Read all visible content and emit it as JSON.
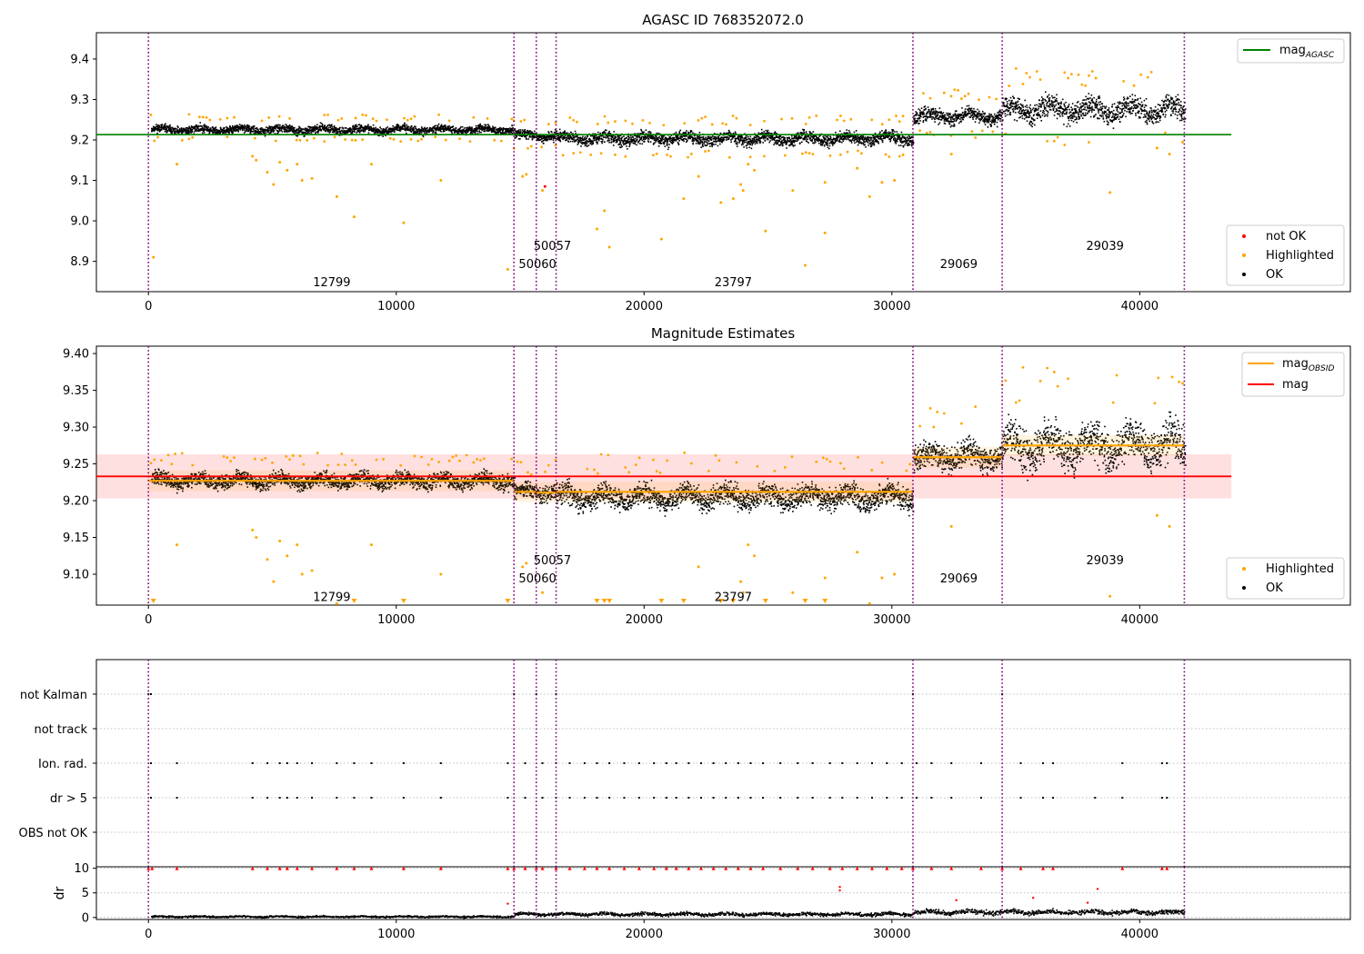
{
  "chart_data": [
    {
      "type": "scatter",
      "title": "AGASC ID 768352072.0",
      "xlabel": "",
      "ylabel": "",
      "xlim": [
        -2100,
        48500
      ],
      "ylim": [
        8.825,
        9.465
      ],
      "x_ticks": [
        0,
        10000,
        20000,
        30000,
        40000
      ],
      "y_ticks": [
        8.9,
        9.0,
        9.1,
        9.2,
        9.3,
        9.4
      ],
      "y_tick_labels": [
        "8.9",
        "9.0",
        "9.1",
        "9.2",
        "9.3",
        "9.4"
      ],
      "lines": [
        {
          "name": "mag_AGASC",
          "label": "mag",
          "subscript": "AGASC",
          "color": "#008000",
          "y": 9.213,
          "x_range": [
            -2100,
            43700
          ]
        }
      ],
      "vertical_lines": [
        0,
        14750,
        15650,
        16450,
        30850,
        34450,
        41800
      ],
      "obsid_labels": [
        {
          "text": "12799",
          "x": 7400,
          "y": 8.85
        },
        {
          "text": "50060",
          "x": 15700,
          "y": 8.895
        },
        {
          "text": "50057",
          "x": 16300,
          "y": 8.94
        },
        {
          "text": "23797",
          "x": 23600,
          "y": 8.85
        },
        {
          "text": "29069",
          "x": 32700,
          "y": 8.895
        },
        {
          "text": "29039",
          "x": 38600,
          "y": 8.94
        }
      ],
      "series": [
        {
          "name": "not OK",
          "color": "#ff0000"
        },
        {
          "name": "Highlighted",
          "color": "#ffa500"
        },
        {
          "name": "OK",
          "color": "#000000"
        }
      ],
      "segments": [
        {
          "x": [
            100,
            14750
          ],
          "center": 9.227,
          "spread": 0.014
        },
        {
          "x": [
            14750,
            16450
          ],
          "center": 9.212,
          "spread": 0.016
        },
        {
          "x": [
            16450,
            30850
          ],
          "center": 9.205,
          "spread": 0.022
        },
        {
          "x": [
            30850,
            34450
          ],
          "center": 9.26,
          "spread": 0.025
        },
        {
          "x": [
            34450,
            41800
          ],
          "center": 9.275,
          "spread": 0.04
        }
      ],
      "outliers": [
        {
          "x": 200,
          "y": 8.91
        },
        {
          "x": 1150,
          "y": 9.14
        },
        {
          "x": 4200,
          "y": 9.16
        },
        {
          "x": 4350,
          "y": 9.15
        },
        {
          "x": 4800,
          "y": 9.12
        },
        {
          "x": 5050,
          "y": 9.09
        },
        {
          "x": 5300,
          "y": 9.145
        },
        {
          "x": 5600,
          "y": 9.125
        },
        {
          "x": 6000,
          "y": 9.14
        },
        {
          "x": 6200,
          "y": 9.1
        },
        {
          "x": 6600,
          "y": 9.105
        },
        {
          "x": 7600,
          "y": 9.06
        },
        {
          "x": 8300,
          "y": 9.01
        },
        {
          "x": 9000,
          "y": 9.14
        },
        {
          "x": 10300,
          "y": 8.995
        },
        {
          "x": 11800,
          "y": 9.1
        },
        {
          "x": 14500,
          "y": 8.88
        },
        {
          "x": 15100,
          "y": 9.11
        },
        {
          "x": 15250,
          "y": 9.115
        },
        {
          "x": 15900,
          "y": 9.075
        },
        {
          "x": 18100,
          "y": 8.98
        },
        {
          "x": 18400,
          "y": 9.025
        },
        {
          "x": 18600,
          "y": 8.935
        },
        {
          "x": 20700,
          "y": 8.955
        },
        {
          "x": 21600,
          "y": 9.055
        },
        {
          "x": 22200,
          "y": 9.11
        },
        {
          "x": 23100,
          "y": 9.045
        },
        {
          "x": 23600,
          "y": 9.055
        },
        {
          "x": 23900,
          "y": 9.09
        },
        {
          "x": 24000,
          "y": 9.075
        },
        {
          "x": 24200,
          "y": 9.14
        },
        {
          "x": 24450,
          "y": 9.125
        },
        {
          "x": 24900,
          "y": 8.975
        },
        {
          "x": 26000,
          "y": 9.075
        },
        {
          "x": 26500,
          "y": 8.89
        },
        {
          "x": 27300,
          "y": 9.095
        },
        {
          "x": 27300,
          "y": 8.97
        },
        {
          "x": 28600,
          "y": 9.13
        },
        {
          "x": 29100,
          "y": 9.06
        },
        {
          "x": 29600,
          "y": 9.095
        },
        {
          "x": 30100,
          "y": 9.1
        },
        {
          "x": 32400,
          "y": 9.165
        },
        {
          "x": 38800,
          "y": 9.07
        },
        {
          "x": 40700,
          "y": 9.18
        },
        {
          "x": 41200,
          "y": 9.165
        }
      ],
      "not_ok_points": [
        {
          "x": 16000,
          "y": 9.085
        }
      ],
      "legend_top": "upper right",
      "legend_bottom": "lower right"
    },
    {
      "type": "scatter",
      "title": "Magnitude Estimates",
      "xlabel": "",
      "ylabel": "",
      "xlim": [
        -2100,
        48500
      ],
      "ylim": [
        9.058,
        9.41
      ],
      "x_ticks": [
        0,
        10000,
        20000,
        30000,
        40000
      ],
      "y_ticks": [
        9.1,
        9.15,
        9.2,
        9.25,
        9.3,
        9.35,
        9.4
      ],
      "y_tick_labels": [
        "9.10",
        "9.15",
        "9.20",
        "9.25",
        "9.30",
        "9.35",
        "9.40"
      ],
      "mag_line": {
        "name": "mag",
        "color": "#ff0000",
        "y": 9.233,
        "band": [
          9.203,
          9.263
        ],
        "band_color": "#ffcccc",
        "x_range": [
          -2100,
          43700
        ]
      },
      "mag_obsid": [
        {
          "x": [
            0,
            14750
          ],
          "y": 9.227
        },
        {
          "x": [
            14750,
            15650
          ],
          "y": 9.212
        },
        {
          "x": [
            15650,
            16450
          ],
          "y": 9.211
        },
        {
          "x": [
            16450,
            30850
          ],
          "y": 9.212
        },
        {
          "x": [
            30850,
            34450
          ],
          "y": 9.259
        },
        {
          "x": [
            34450,
            41800
          ],
          "y": 9.275
        }
      ],
      "vertical_lines": [
        0,
        14750,
        15650,
        16450,
        30850,
        34450,
        41800
      ],
      "obsid_labels": [
        {
          "text": "12799",
          "x": 7400,
          "y": 9.07
        },
        {
          "text": "50060",
          "x": 15700,
          "y": 9.095
        },
        {
          "text": "50057",
          "x": 16300,
          "y": 9.12
        },
        {
          "text": "23797",
          "x": 23600,
          "y": 9.07
        },
        {
          "text": "29069",
          "x": 32700,
          "y": 9.095
        },
        {
          "text": "29039",
          "x": 38600,
          "y": 9.12
        }
      ],
      "series": [
        {
          "name": "Highlighted",
          "color": "#ffa500"
        },
        {
          "name": "OK",
          "color": "#000000"
        }
      ],
      "legend_top_entries": [
        {
          "label": "mag",
          "subscript": "OBSID",
          "color": "#ffa500"
        },
        {
          "label": "mag",
          "subscript": "",
          "color": "#ff0000"
        }
      ],
      "legend_top": "upper right",
      "legend_bottom": "lower right"
    },
    {
      "type": "scatter",
      "title": "",
      "xlabel": "",
      "ylabel": "",
      "xlim": [
        -2100,
        48500
      ],
      "categories": [
        "not Kalman",
        "not track",
        "Ion. rad.",
        "dr > 5",
        "OBS not OK"
      ],
      "vertical_lines": [
        0,
        14750,
        15650,
        16450,
        30850,
        34450,
        41800
      ],
      "flag_points": {
        "not Kalman": [
          0,
          100,
          14750,
          15650,
          16450,
          30850,
          34450
        ],
        "not track": [],
        "Ion. rad.": [
          100,
          1150,
          4200,
          4800,
          5300,
          5600,
          6000,
          6600,
          7600,
          8300,
          9000,
          10300,
          11800,
          14500,
          15200,
          15900,
          16450,
          17000,
          17600,
          18100,
          18600,
          19200,
          19800,
          20400,
          20900,
          21300,
          21800,
          22300,
          22800,
          23300,
          23800,
          24300,
          24800,
          25500,
          26200,
          26800,
          27500,
          28000,
          28600,
          29200,
          29800,
          30400,
          31000,
          31600,
          32400,
          33600,
          35200,
          36100,
          36500,
          39300,
          40900,
          41100
        ],
        "dr > 5": [
          100,
          1150,
          4200,
          4800,
          5300,
          5600,
          6000,
          6600,
          7600,
          8300,
          9000,
          10300,
          11800,
          14500,
          15200,
          15900,
          16450,
          17000,
          17600,
          18100,
          18600,
          19200,
          19800,
          20400,
          20900,
          21300,
          21800,
          22300,
          22800,
          23300,
          23800,
          24300,
          24800,
          25500,
          26200,
          26800,
          27500,
          28000,
          28600,
          29200,
          29800,
          30400,
          31000,
          31600,
          32400,
          33600,
          35200,
          36100,
          36500,
          38200,
          39300,
          40900,
          41100
        ],
        "OBS not OK": []
      }
    },
    {
      "type": "scatter",
      "title": "",
      "xlabel": "",
      "ylabel": "dr",
      "xlim": [
        -2100,
        48500
      ],
      "ylim": [
        -0.4,
        10.3
      ],
      "x_ticks": [
        0,
        10000,
        20000,
        30000,
        40000
      ],
      "y_ticks": [
        0,
        5,
        10
      ],
      "y_tick_labels": [
        "0",
        "5",
        "10"
      ],
      "vertical_lines": [
        0,
        14750,
        15650,
        16450,
        30850,
        34450,
        41800
      ],
      "segments": [
        {
          "x": [
            100,
            14750
          ],
          "center": 0.3,
          "spread": 0.25
        },
        {
          "x": [
            14750,
            30850
          ],
          "center": 0.8,
          "spread": 0.5
        },
        {
          "x": [
            30850,
            41800
          ],
          "center": 1.2,
          "spread": 0.7
        }
      ],
      "outliers": [
        {
          "x": 14500,
          "y": 2.8
        },
        {
          "x": 27900,
          "y": 5.5
        },
        {
          "x": 27900,
          "y": 6.2
        },
        {
          "x": 32600,
          "y": 3.5
        },
        {
          "x": 35700,
          "y": 4
        },
        {
          "x": 38300,
          "y": 5.8
        },
        {
          "x": 37900,
          "y": 3
        }
      ],
      "clipped_x": [
        0,
        150,
        1150,
        4200,
        4800,
        5300,
        5600,
        6000,
        6600,
        7600,
        8300,
        9000,
        10300,
        11800,
        14500,
        14750,
        15200,
        15650,
        15900,
        16450,
        17000,
        17600,
        18100,
        18600,
        19200,
        19800,
        20400,
        20900,
        21300,
        21800,
        22300,
        22800,
        23300,
        23800,
        24300,
        24800,
        25500,
        26200,
        26800,
        27500,
        28000,
        28600,
        29200,
        29800,
        30400,
        30850,
        31600,
        32400,
        33600,
        34450,
        35200,
        36100,
        36500,
        39300,
        40900,
        41100
      ],
      "clipped_y": 10,
      "clipped_color": "#ff0000"
    }
  ]
}
